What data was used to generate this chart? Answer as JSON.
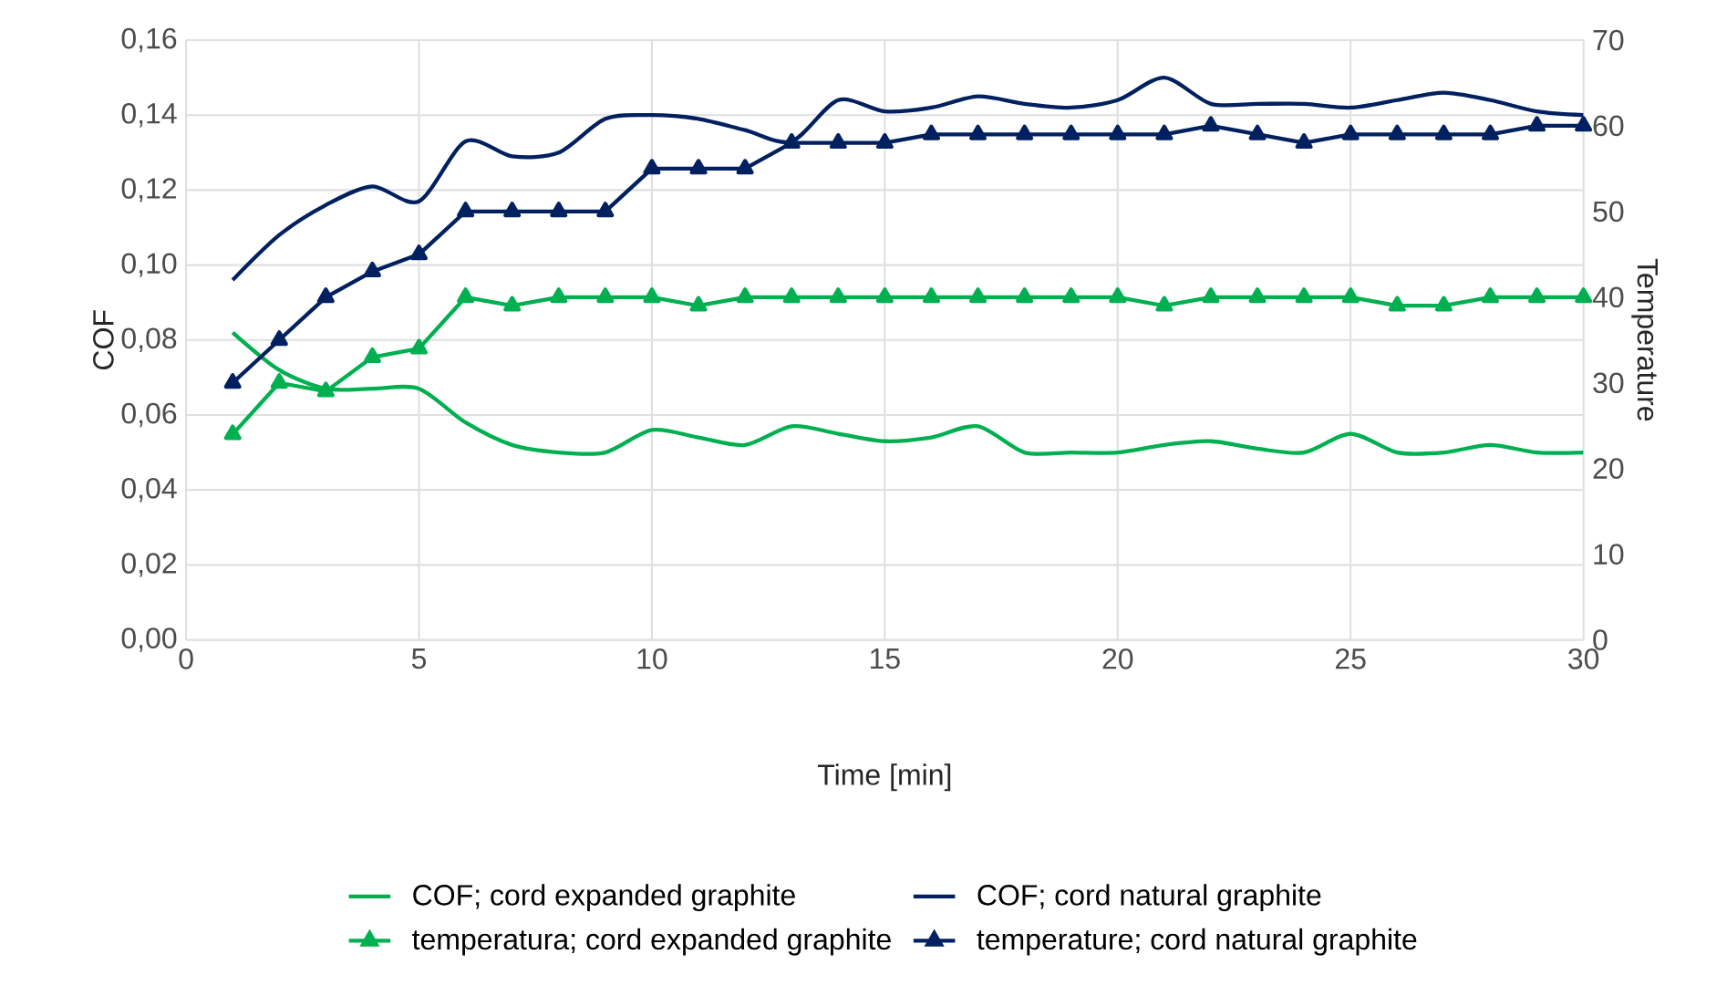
{
  "chart_data": {
    "type": "line",
    "xlabel": "Time [min]",
    "ylabel": "COF",
    "y2label": "Temperature",
    "x": [
      1,
      2,
      3,
      4,
      5,
      6,
      7,
      8,
      9,
      10,
      11,
      12,
      13,
      14,
      15,
      16,
      17,
      18,
      19,
      20,
      21,
      22,
      23,
      24,
      25,
      26,
      27,
      28,
      29,
      30
    ],
    "series": [
      {
        "name": "COF; cord expanded graphite",
        "color": "#00b050",
        "marker": "none",
        "values": [
          0.082,
          0.072,
          0.067,
          0.067,
          0.067,
          0.058,
          0.052,
          0.05,
          0.05,
          0.056,
          0.054,
          0.052,
          0.057,
          0.055,
          0.053,
          0.054,
          0.057,
          0.05,
          0.05,
          0.05,
          0.052,
          0.053,
          0.051,
          0.05,
          0.055,
          0.05,
          0.05,
          0.052,
          0.05,
          0.05
        ]
      },
      {
        "name": "COF; cord natural graphite",
        "color": "#002060",
        "marker": "none",
        "values": [
          0.096,
          0.108,
          0.116,
          0.121,
          0.117,
          0.133,
          0.129,
          0.13,
          0.139,
          0.14,
          0.139,
          0.136,
          0.133,
          0.144,
          0.141,
          0.142,
          0.145,
          0.143,
          0.142,
          0.144,
          0.15,
          0.143,
          0.143,
          0.143,
          0.142,
          0.144,
          0.146,
          0.144,
          0.141,
          0.14
        ]
      },
      {
        "name": "temperatura; cord expanded graphite",
        "color": "#00b050",
        "marker": "triangle",
        "axis": "y2",
        "values": [
          24,
          30,
          29,
          33,
          34,
          40,
          39,
          40,
          40,
          40,
          39,
          40,
          40,
          40,
          40,
          40,
          40,
          40,
          40,
          40,
          39,
          40,
          40,
          40,
          40,
          39,
          39,
          40,
          40,
          40
        ]
      },
      {
        "name": "temperature; cord natural graphite",
        "color": "#002060",
        "marker": "triangle",
        "axis": "y2",
        "values": [
          30,
          35,
          40,
          43,
          45,
          50,
          50,
          50,
          50,
          55,
          55,
          55,
          58,
          58,
          58,
          59,
          59,
          59,
          59,
          59,
          59,
          60,
          59,
          58,
          59,
          59,
          59,
          59,
          60,
          60
        ]
      }
    ],
    "xlim": [
      0,
      30
    ],
    "xticks": [
      0,
      5,
      10,
      15,
      20,
      25,
      30
    ],
    "ylim": [
      0,
      0.16
    ],
    "yticks": [
      {
        "value": 0,
        "label": "0,00"
      },
      {
        "value": 0.02,
        "label": "0,02"
      },
      {
        "value": 0.04,
        "label": "0,04"
      },
      {
        "value": 0.06,
        "label": "0,06"
      },
      {
        "value": 0.08,
        "label": "0,08"
      },
      {
        "value": 0.1,
        "label": "0,10"
      },
      {
        "value": 0.12,
        "label": "0,12"
      },
      {
        "value": 0.14,
        "label": "0,14"
      },
      {
        "value": 0.16,
        "label": "0,16"
      }
    ],
    "y2lim": [
      0,
      70
    ],
    "y2ticks": [
      0,
      10,
      20,
      30,
      40,
      50,
      60,
      70
    ],
    "grid": true,
    "legend": "bottom"
  }
}
